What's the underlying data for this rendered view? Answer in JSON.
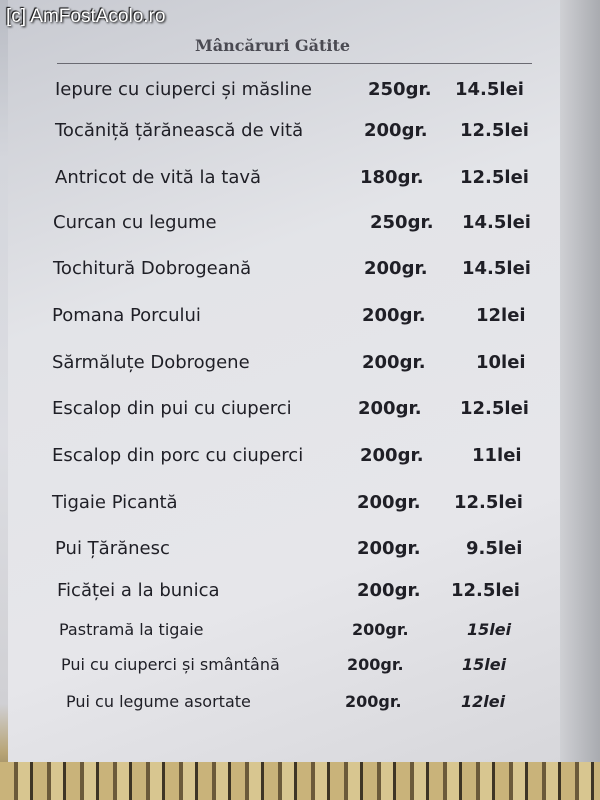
{
  "watermark": "[c] AmFostAcolo.ro",
  "menu": {
    "title": "Mâncăruri Gătite",
    "items": [
      {
        "name": "Iepure cu ciuperci și măsline",
        "weight": "250gr.",
        "price": "14.5lei"
      },
      {
        "name": "Tocăniță țărănească de vită",
        "weight": "200gr.",
        "price": "12.5lei"
      },
      {
        "name": "Antricot de vită la tavă",
        "weight": "180gr.",
        "price": "12.5lei"
      },
      {
        "name": "Curcan cu legume",
        "weight": "250gr.",
        "price": "14.5lei"
      },
      {
        "name": "Tochitură Dobrogeană",
        "weight": "200gr.",
        "price": "14.5lei"
      },
      {
        "name": "Pomana Porcului",
        "weight": "200gr.",
        "price": "12lei"
      },
      {
        "name": "Sărmăluțe Dobrogene",
        "weight": "200gr.",
        "price": "10lei"
      },
      {
        "name": "Escalop din pui cu ciuperci",
        "weight": "200gr.",
        "price": "12.5lei"
      },
      {
        "name": "Escalop din porc cu ciuperci",
        "weight": "200gr.",
        "price": "11lei"
      },
      {
        "name": "Tigaie Picantă",
        "weight": "200gr.",
        "price": "12.5lei"
      },
      {
        "name": "Pui Țărănesc",
        "weight": "200gr.",
        "price": "9.5lei"
      },
      {
        "name": "Ficăței a la bunica",
        "weight": "200gr.",
        "price": "12.5lei"
      },
      {
        "name": "Pastramă la tigaie",
        "weight": "200gr.",
        "price": "15lei"
      },
      {
        "name": "Pui cu ciuperci și smântână",
        "weight": "200gr.",
        "price": "15lei"
      },
      {
        "name": "Pui cu legume asortate",
        "weight": "200gr.",
        "price": "12lei"
      }
    ]
  }
}
